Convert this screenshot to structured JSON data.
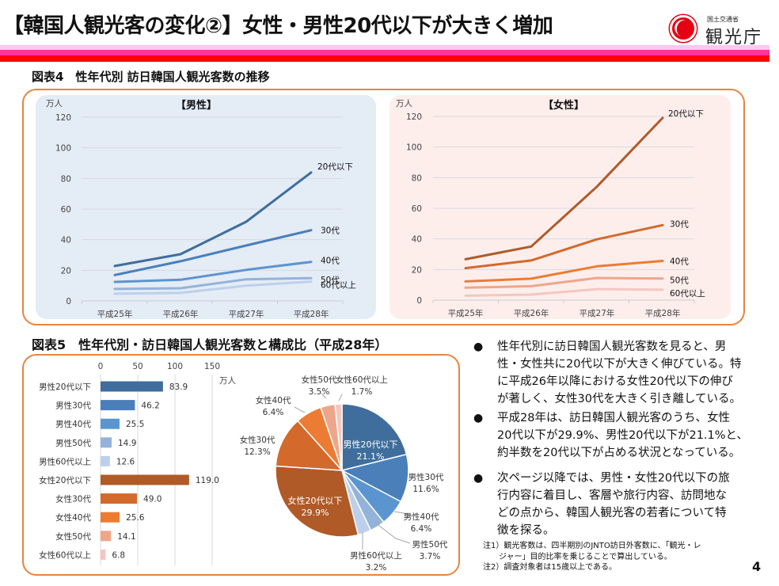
{
  "header": {
    "title": "【韓国人観光客の変化②】女性・男性20代以下が大きく増加",
    "logo_small": "国土交通省",
    "logo_main": "観光庁",
    "band_colors": [
      "#fdc7f2",
      "#ff339a",
      "#ff0000"
    ]
  },
  "section1_title": "図表4　性年代別 訪日韓国人観光客数の推移",
  "section2_title": "図表5　性年代別・訪日韓国人観光客数と構成比（平成28年）",
  "bullets": [
    "性年代別に訪日韓国人観光客数を見ると、男性・女性共に20代以下が大きく伸びている。特に平成26年以降における女性20代以下の伸びが著しく、女性30代を大きく引き離している。",
    "平成28年は、訪日韓国人観光客のうち、女性20代以下が29.9%、男性20代以下が21.1%と、約半数を20代以下が占める状況となっている。",
    "次ページ以降では、男性・女性20代以下の旅行内容に着目し、客層や旅行内容、訪問地などの点から、韓国人観光客の若者について特徴を探る。"
  ],
  "bullet_lines": [
    [
      "性年代別に訪日韓国人観光客数を見ると、男",
      "性・女性共に20代以下が大きく伸びている。特",
      "に平成26年以降における女性20代以下の伸び",
      "が著しく、女性30代を大きく引き離している。"
    ],
    [
      "平成28年は、訪日韓国人観光客のうち、女性",
      "20代以下が29.9%、男性20代以下が21.1%と、",
      "約半数を20代以下が占める状況となっている。"
    ],
    [
      "次ページ以降では、男性・女性20代以下の旅",
      "行内容に着目し、客層や旅行内容、訪問地な",
      "どの点から、韓国人観光客の若者について特",
      "徴を探る。"
    ]
  ],
  "notes": [
    "注1）観光客数は、四半期別のJNTO訪日外客数に、「観光・レ",
    "　　ジャー」目的比率を乗じることで算出している。",
    "注2）調査対象者は15歳以上である。"
  ],
  "page_number": "4",
  "chart_data": [
    {
      "type": "line",
      "title": "【男性】",
      "ylabel": "万人",
      "xlabel": "",
      "categories": [
        "平成25年",
        "平成26年",
        "平成27年",
        "平成28年"
      ],
      "ylim": [
        0,
        120
      ],
      "yticks": [
        0,
        20,
        40,
        60,
        80,
        100,
        120
      ],
      "grid": true,
      "legend": "end-of-line labels",
      "series": [
        {
          "name": "20代以下",
          "values": [
            22.8,
            30.5,
            51.7,
            83.9
          ],
          "color": "#3f6e9c"
        },
        {
          "name": "30代",
          "values": [
            16.9,
            25.9,
            36.2,
            46.2
          ],
          "color": "#4a7fba"
        },
        {
          "name": "40代",
          "values": [
            12.4,
            13.8,
            20.3,
            25.5
          ],
          "color": "#5b95d0"
        },
        {
          "name": "50代",
          "values": [
            7.8,
            8.3,
            14.1,
            14.9
          ],
          "color": "#94b3da"
        },
        {
          "name": "60代以上",
          "values": [
            4.7,
            5.2,
            10.0,
            12.6
          ],
          "color": "#bcd0eb"
        }
      ]
    },
    {
      "type": "line",
      "title": "【女性】",
      "ylabel": "万人",
      "xlabel": "",
      "categories": [
        "平成25年",
        "平成26年",
        "平成27年",
        "平成28年"
      ],
      "ylim": [
        0,
        120
      ],
      "yticks": [
        0,
        20,
        40,
        60,
        80,
        100,
        120
      ],
      "grid": true,
      "legend": "end-of-line labels",
      "series": [
        {
          "name": "20代以下",
          "values": [
            26.7,
            35.0,
            74.1,
            119.0
          ],
          "color": "#b05a28"
        },
        {
          "name": "30代",
          "values": [
            20.9,
            25.9,
            39.7,
            49.0
          ],
          "color": "#d4692c"
        },
        {
          "name": "40代",
          "values": [
            12.2,
            14.0,
            22.1,
            25.6
          ],
          "color": "#ec7c33"
        },
        {
          "name": "50代",
          "values": [
            8.1,
            9.1,
            14.5,
            14.1
          ],
          "color": "#eea68b"
        },
        {
          "name": "60代以上",
          "values": [
            2.9,
            3.6,
            7.2,
            6.8
          ],
          "color": "#f3c7bd"
        }
      ]
    },
    {
      "type": "bar",
      "orientation": "horizontal",
      "title": "",
      "xlabel": "万人",
      "xlim": [
        0,
        150
      ],
      "xticks": [
        0,
        50,
        100,
        150
      ],
      "grid": true,
      "categories": [
        "男性20代以下",
        "男性30代",
        "男性40代",
        "男性50代",
        "男性60代以上",
        "女性20代以下",
        "女性30代",
        "女性40代",
        "女性50代",
        "女性60代以上"
      ],
      "values": [
        83.9,
        46.2,
        25.5,
        14.9,
        12.6,
        119.0,
        49.0,
        25.6,
        14.1,
        6.8
      ],
      "value_labels": [
        "83.9",
        "46.2",
        "25.5",
        "14.9",
        "12.6",
        "119.0",
        "49.0",
        "25.6",
        "14.1",
        "6.8"
      ],
      "colors": [
        "#3f6e9c",
        "#4a7fba",
        "#5b95d0",
        "#94b3da",
        "#bcd0eb",
        "#b05a28",
        "#d4692c",
        "#ec7c33",
        "#eea68b",
        "#f3c7bd"
      ]
    },
    {
      "type": "pie",
      "title": "",
      "slices": [
        {
          "name": "男性20代以下",
          "pct_label": "21.1%",
          "value": 21.1,
          "color": "#3f6e9c"
        },
        {
          "name": "男性30代",
          "pct_label": "11.6%",
          "value": 11.6,
          "color": "#4a7fba"
        },
        {
          "name": "男性40代",
          "pct_label": "6.4%",
          "value": 6.4,
          "color": "#5b95d0"
        },
        {
          "name": "男性50代",
          "pct_label": "3.7%",
          "value": 3.7,
          "color": "#94b3da"
        },
        {
          "name": "男性60代以上",
          "pct_label": "3.2%",
          "value": 3.2,
          "color": "#bcd0eb"
        },
        {
          "name": "女性20代以下",
          "pct_label": "29.9%",
          "value": 29.9,
          "color": "#b05a28"
        },
        {
          "name": "女性30代",
          "pct_label": "12.3%",
          "value": 12.3,
          "color": "#d4692c"
        },
        {
          "name": "女性40代",
          "pct_label": "6.4%",
          "value": 6.4,
          "color": "#ec7c33"
        },
        {
          "name": "女性50代",
          "pct_label": "3.5%",
          "value": 3.5,
          "color": "#eea68b"
        },
        {
          "name": "女性60代以上",
          "pct_label": "1.7%",
          "value": 1.7,
          "color": "#f3c7bd"
        }
      ]
    }
  ]
}
